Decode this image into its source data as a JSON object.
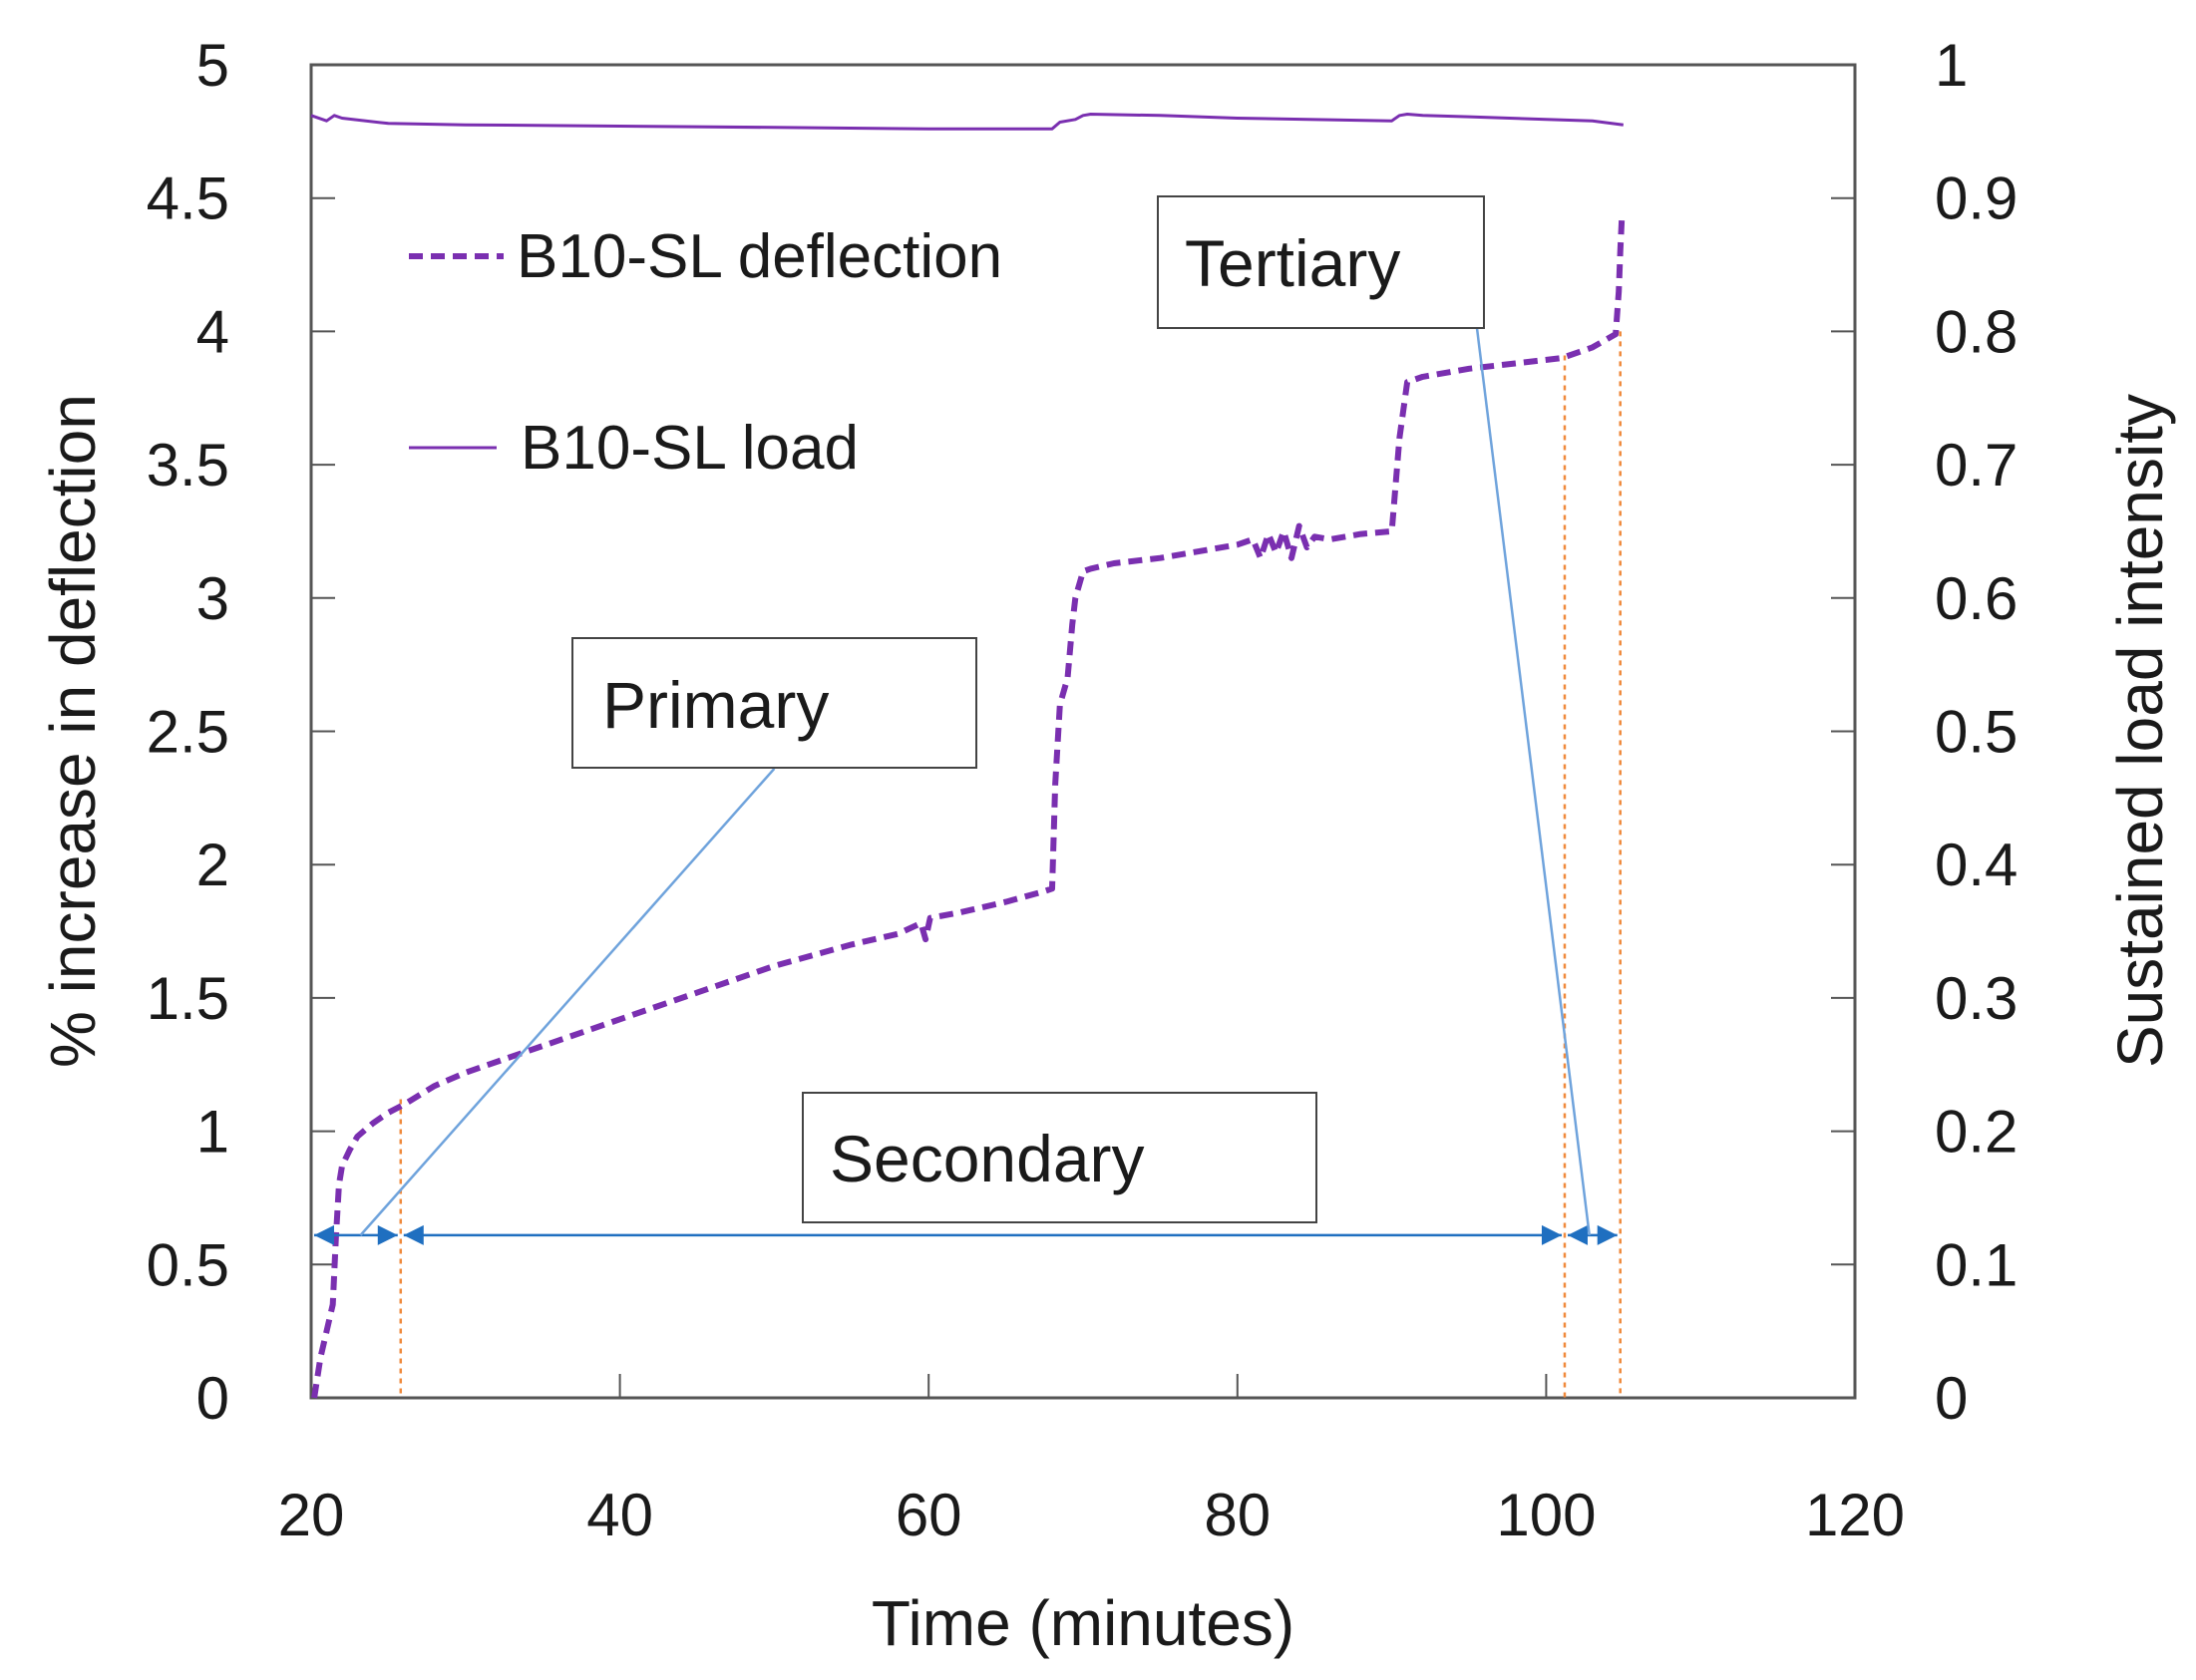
{
  "chart_data": {
    "type": "line",
    "title": "",
    "xlabel": "Time (minutes)",
    "ylabel": "% increase in deflection",
    "y2label": "Sustained load intensity",
    "xlim": [
      20,
      120
    ],
    "ylim": [
      0,
      5
    ],
    "y2lim": [
      0,
      1
    ],
    "x_ticks": [
      20,
      40,
      60,
      80,
      100,
      120
    ],
    "y_ticks": [
      0,
      0.5,
      1,
      1.5,
      2,
      2.5,
      3,
      3.5,
      4,
      4.5,
      5
    ],
    "y2_ticks": [
      0,
      0.1,
      0.2,
      0.3,
      0.4,
      0.5,
      0.6,
      0.7,
      0.8,
      0.9,
      1
    ],
    "grid": false,
    "legend_position": "top-left",
    "colors": {
      "series": "#7a2fb0",
      "annotation_line": "#6fa3dc",
      "arrow": "#1f6fc0",
      "phase_boundary": "#f08a3c",
      "axis": "#555555"
    },
    "series": [
      {
        "name": "B10-SL deflection",
        "axis": "left",
        "style": "dashed",
        "x": [
          20.2,
          20.6,
          21.0,
          21.4,
          21.6,
          21.8,
          22.0,
          22.5,
          23.0,
          24.0,
          25.0,
          26.0,
          28.0,
          30.0,
          33.0,
          36.0,
          40.0,
          45.0,
          50.0,
          55.0,
          58.0,
          59.5,
          59.8,
          60.1,
          62.0,
          65.0,
          67.5,
          68.0,
          68.2,
          68.5,
          69.0,
          69.3,
          69.5,
          70.0,
          70.5,
          72.0,
          75.0,
          78.0,
          80.0,
          81.0,
          81.5,
          82.0,
          82.5,
          83.0,
          83.5,
          84.0,
          84.5,
          85.0,
          86.0,
          88.0,
          90.0,
          90.5,
          91.0,
          92.0,
          95.0,
          98.0,
          101.0,
          103.0,
          104.5,
          104.7,
          104.8,
          104.9
        ],
        "values": [
          0.0,
          0.15,
          0.25,
          0.35,
          0.6,
          0.8,
          0.87,
          0.93,
          0.98,
          1.03,
          1.07,
          1.1,
          1.17,
          1.22,
          1.28,
          1.34,
          1.42,
          1.52,
          1.62,
          1.7,
          1.74,
          1.78,
          1.72,
          1.8,
          1.82,
          1.86,
          1.9,
          1.91,
          2.3,
          2.6,
          2.7,
          2.9,
          3.0,
          3.1,
          3.11,
          3.13,
          3.15,
          3.18,
          3.2,
          3.22,
          3.15,
          3.24,
          3.17,
          3.25,
          3.15,
          3.27,
          3.19,
          3.23,
          3.22,
          3.24,
          3.25,
          3.6,
          3.81,
          3.83,
          3.86,
          3.88,
          3.9,
          3.94,
          3.99,
          4.15,
          4.3,
          4.43
        ]
      },
      {
        "name": "B10-SL load",
        "axis": "right",
        "style": "solid",
        "x": [
          20.0,
          21.0,
          21.5,
          22.0,
          25.0,
          30.0,
          40.0,
          50.0,
          60.0,
          68.0,
          68.5,
          69.5,
          70.0,
          70.5,
          75.0,
          80.0,
          90.0,
          90.5,
          91.0,
          92.0,
          95.0,
          100.0,
          103.0,
          105.0
        ],
        "values": [
          0.962,
          0.958,
          0.962,
          0.96,
          0.956,
          0.955,
          0.954,
          0.953,
          0.952,
          0.952,
          0.957,
          0.959,
          0.962,
          0.963,
          0.962,
          0.96,
          0.958,
          0.962,
          0.963,
          0.962,
          0.961,
          0.959,
          0.958,
          0.955
        ]
      }
    ],
    "phase_boundaries_x": [
      25.8,
      101.2,
      104.8
    ],
    "phase_arrow_y": 0.61,
    "phase_arrows": [
      {
        "from": 20.0,
        "to": 25.8
      },
      {
        "from": 25.8,
        "to": 101.2
      },
      {
        "from": 101.2,
        "to": 104.8
      }
    ],
    "annotations": [
      {
        "text": "Primary",
        "pointer_x": 23.2,
        "pointer_y": 0.61,
        "anchor_x": 50.0,
        "anchor_y": 2.36
      },
      {
        "text": "Secondary"
      },
      {
        "text": "Tertiary",
        "pointer_x": 102.8,
        "pointer_y": 0.61,
        "anchor_x": 95.5,
        "anchor_y": 4.02
      }
    ]
  }
}
